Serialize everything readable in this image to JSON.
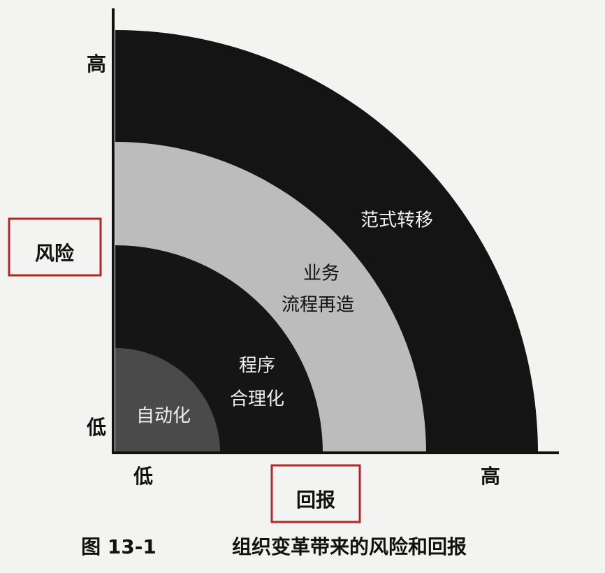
{
  "axes": {
    "y_label": "风险",
    "y_high": "高",
    "y_low": "低",
    "x_label": "回报",
    "x_low": "低",
    "x_high": "高"
  },
  "regions": [
    {
      "lines": [
        "范式转移"
      ]
    },
    {
      "lines": [
        "业务",
        "流程再造"
      ]
    },
    {
      "lines": [
        "程序",
        "合理化"
      ]
    },
    {
      "lines": [
        "自动化"
      ]
    }
  ],
  "caption": {
    "number": "图 13-1",
    "text": "组织变革带来的风险和回报"
  }
}
